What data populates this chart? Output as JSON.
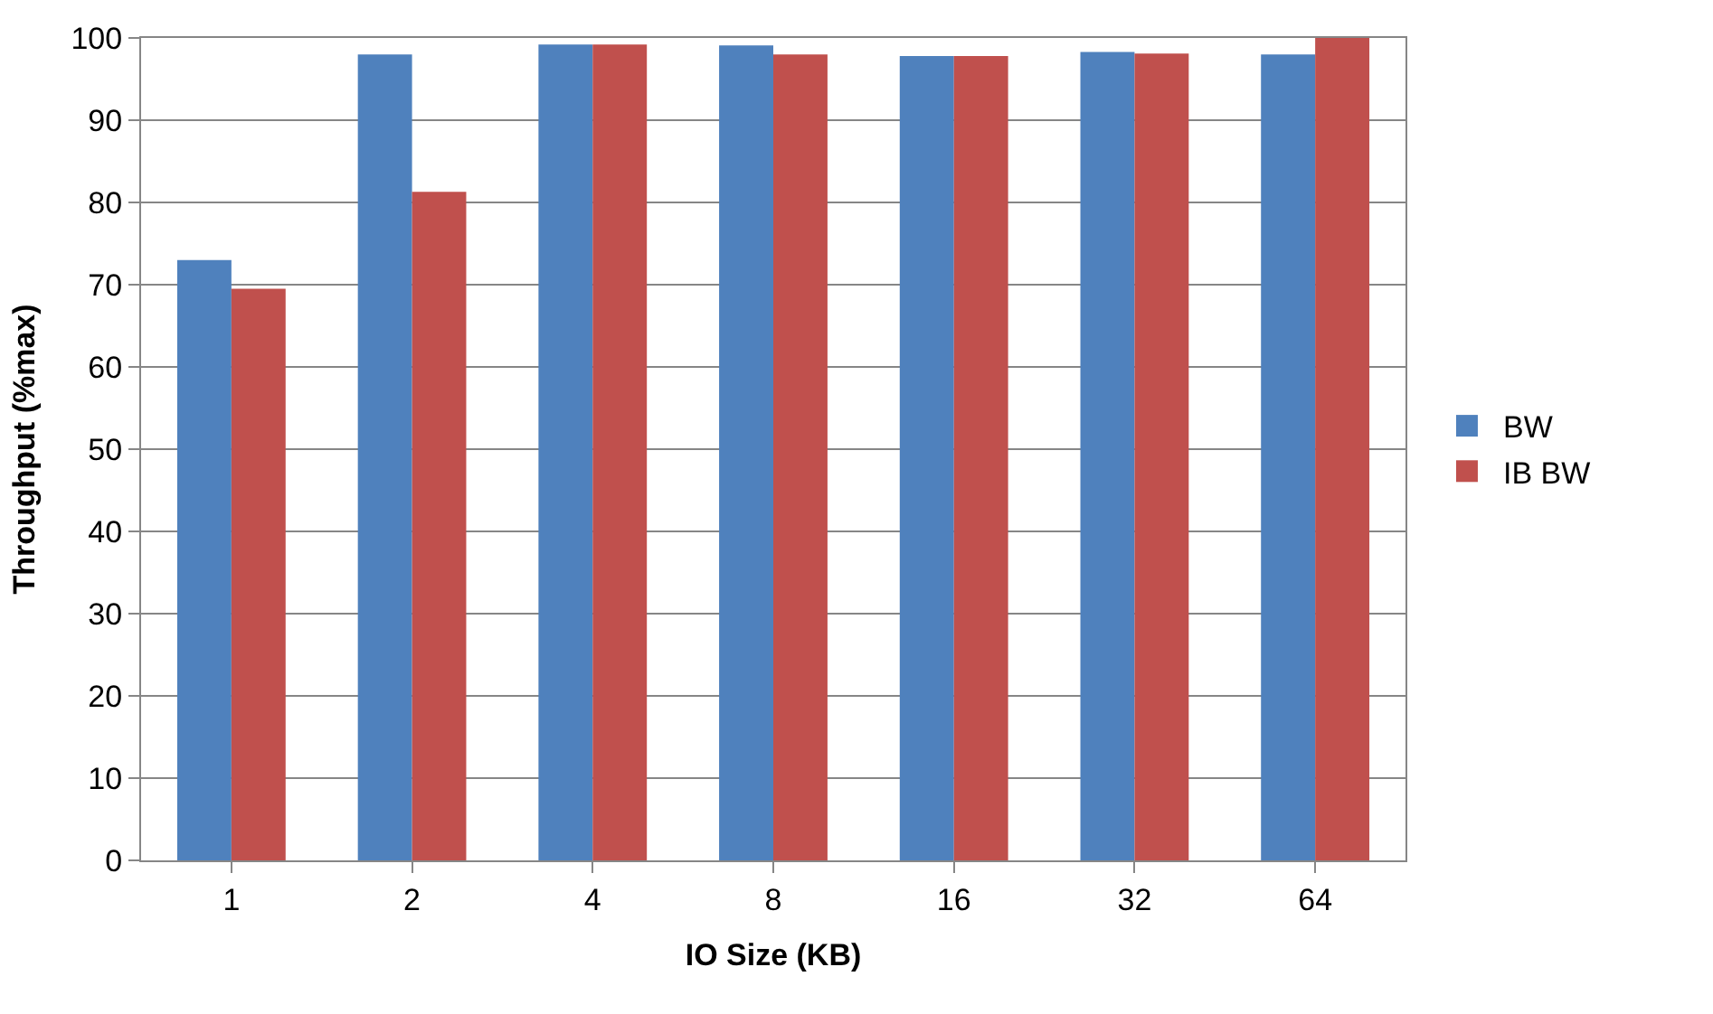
{
  "chart_data": {
    "type": "bar",
    "xlabel": "IO Size (KB)",
    "ylabel": "Throughput (%max)",
    "categories": [
      "1",
      "2",
      "4",
      "8",
      "16",
      "32",
      "64"
    ],
    "series": [
      {
        "name": "BW",
        "color": "#4f81bd",
        "values": [
          73,
          98,
          99.2,
          99.1,
          97.8,
          98.3,
          98
        ]
      },
      {
        "name": "IB BW",
        "color": "#c0504d",
        "values": [
          69.5,
          81.3,
          99.2,
          98,
          97.8,
          98.1,
          100
        ]
      }
    ],
    "ylim": [
      0,
      100
    ],
    "yticks": [
      0,
      10,
      20,
      30,
      40,
      50,
      60,
      70,
      80,
      90,
      100
    ],
    "grid": "y",
    "legend": "right"
  }
}
